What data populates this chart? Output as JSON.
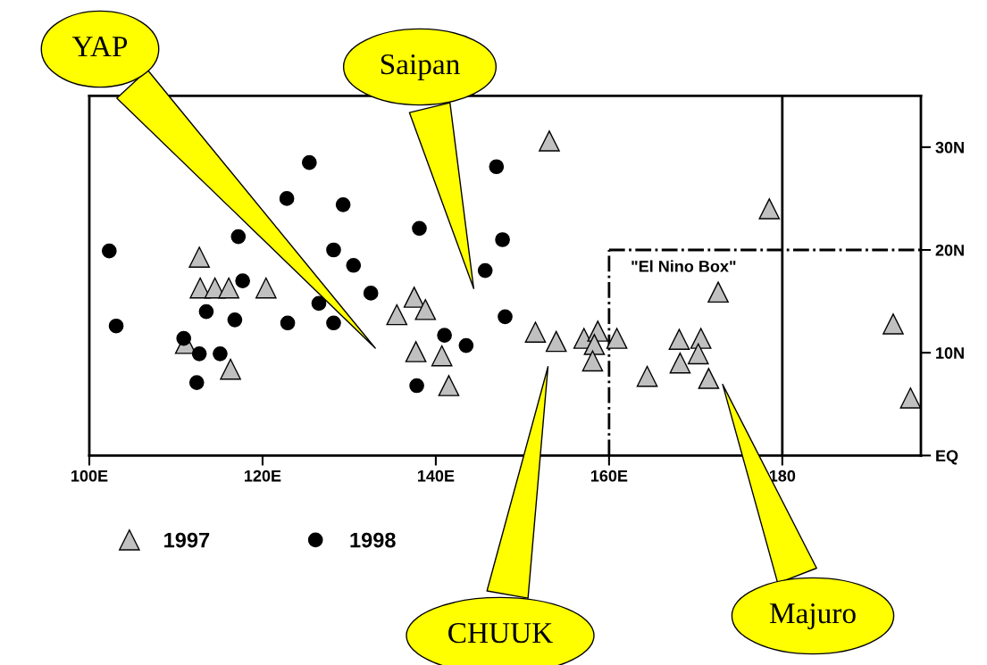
{
  "chart_data": {
    "type": "scatter",
    "xlim": [
      100,
      196
    ],
    "ylim": [
      0,
      35
    ],
    "xticks": [
      {
        "value": 100,
        "label": "100E"
      },
      {
        "value": 120,
        "label": "120E"
      },
      {
        "value": 140,
        "label": "140E"
      },
      {
        "value": 160,
        "label": "160E"
      },
      {
        "value": 180,
        "label": "180"
      }
    ],
    "yticks": [
      {
        "value": 0,
        "label": "EQ"
      },
      {
        "value": 10,
        "label": "10N"
      },
      {
        "value": 20,
        "label": "20N"
      },
      {
        "value": 30,
        "label": "30N"
      }
    ],
    "grid": false,
    "legend": "bottom left",
    "series": [
      {
        "name": "1997",
        "color": "#c0c0c0",
        "marker": "triangle",
        "x": [
          153.1,
          112.7,
          112.8,
          114.5,
          116.1,
          120.4,
          137.5,
          135.5,
          138.8,
          151.5,
          153.9,
          157.1,
          158.7,
          160.9,
          158.3,
          158.1,
          111.1,
          116.3,
          137.7,
          140.7,
          141.5,
          164.4,
          168.1,
          170.6,
          168.2,
          170.3,
          171.5,
          172.6,
          178.5,
          192.8,
          194.8
        ],
        "values": [
          30.6,
          19.3,
          16.3,
          16.3,
          16.3,
          16.3,
          15.4,
          13.7,
          14.2,
          12.0,
          11.1,
          11.4,
          12.1,
          11.4,
          10.8,
          9.2,
          10.9,
          8.4,
          10.1,
          9.7,
          6.8,
          7.7,
          11.3,
          11.4,
          9.0,
          9.9,
          7.5,
          15.9,
          24.0,
          12.8,
          5.6
        ]
      },
      {
        "name": "1998",
        "color": "#000000",
        "marker": "circle",
        "x": [
          102.3,
          103.1,
          110.9,
          112.7,
          112.4,
          115.1,
          113.5,
          116.8,
          117.2,
          117.7,
          122.8,
          122.9,
          125.4,
          126.5,
          128.2,
          128.2,
          129.3,
          130.5,
          132.5,
          138.1,
          137.8,
          141.0,
          143.5,
          145.7,
          147.0,
          147.7,
          148.0
        ],
        "values": [
          19.9,
          12.6,
          11.4,
          9.9,
          7.1,
          9.9,
          14.0,
          13.2,
          21.3,
          17.0,
          25.0,
          12.9,
          28.5,
          14.8,
          20.0,
          12.9,
          24.4,
          18.5,
          15.8,
          22.1,
          6.8,
          11.7,
          10.7,
          18.0,
          28.1,
          21.0,
          13.5
        ]
      }
    ],
    "ref_lines": [
      {
        "axis": "x",
        "value": 180,
        "line_style": "solid",
        "color": "#000000"
      },
      {
        "axis": "x",
        "value": 160,
        "line_style": "dashdot",
        "color": "#000000"
      },
      {
        "axis": "y",
        "value": 20,
        "line_style": "dashdot",
        "color": "#000000",
        "label": "\"El Nino Box\""
      }
    ],
    "annotations": [
      "YAP",
      "Saipan",
      "CHUUK",
      "Majuro"
    ]
  }
}
